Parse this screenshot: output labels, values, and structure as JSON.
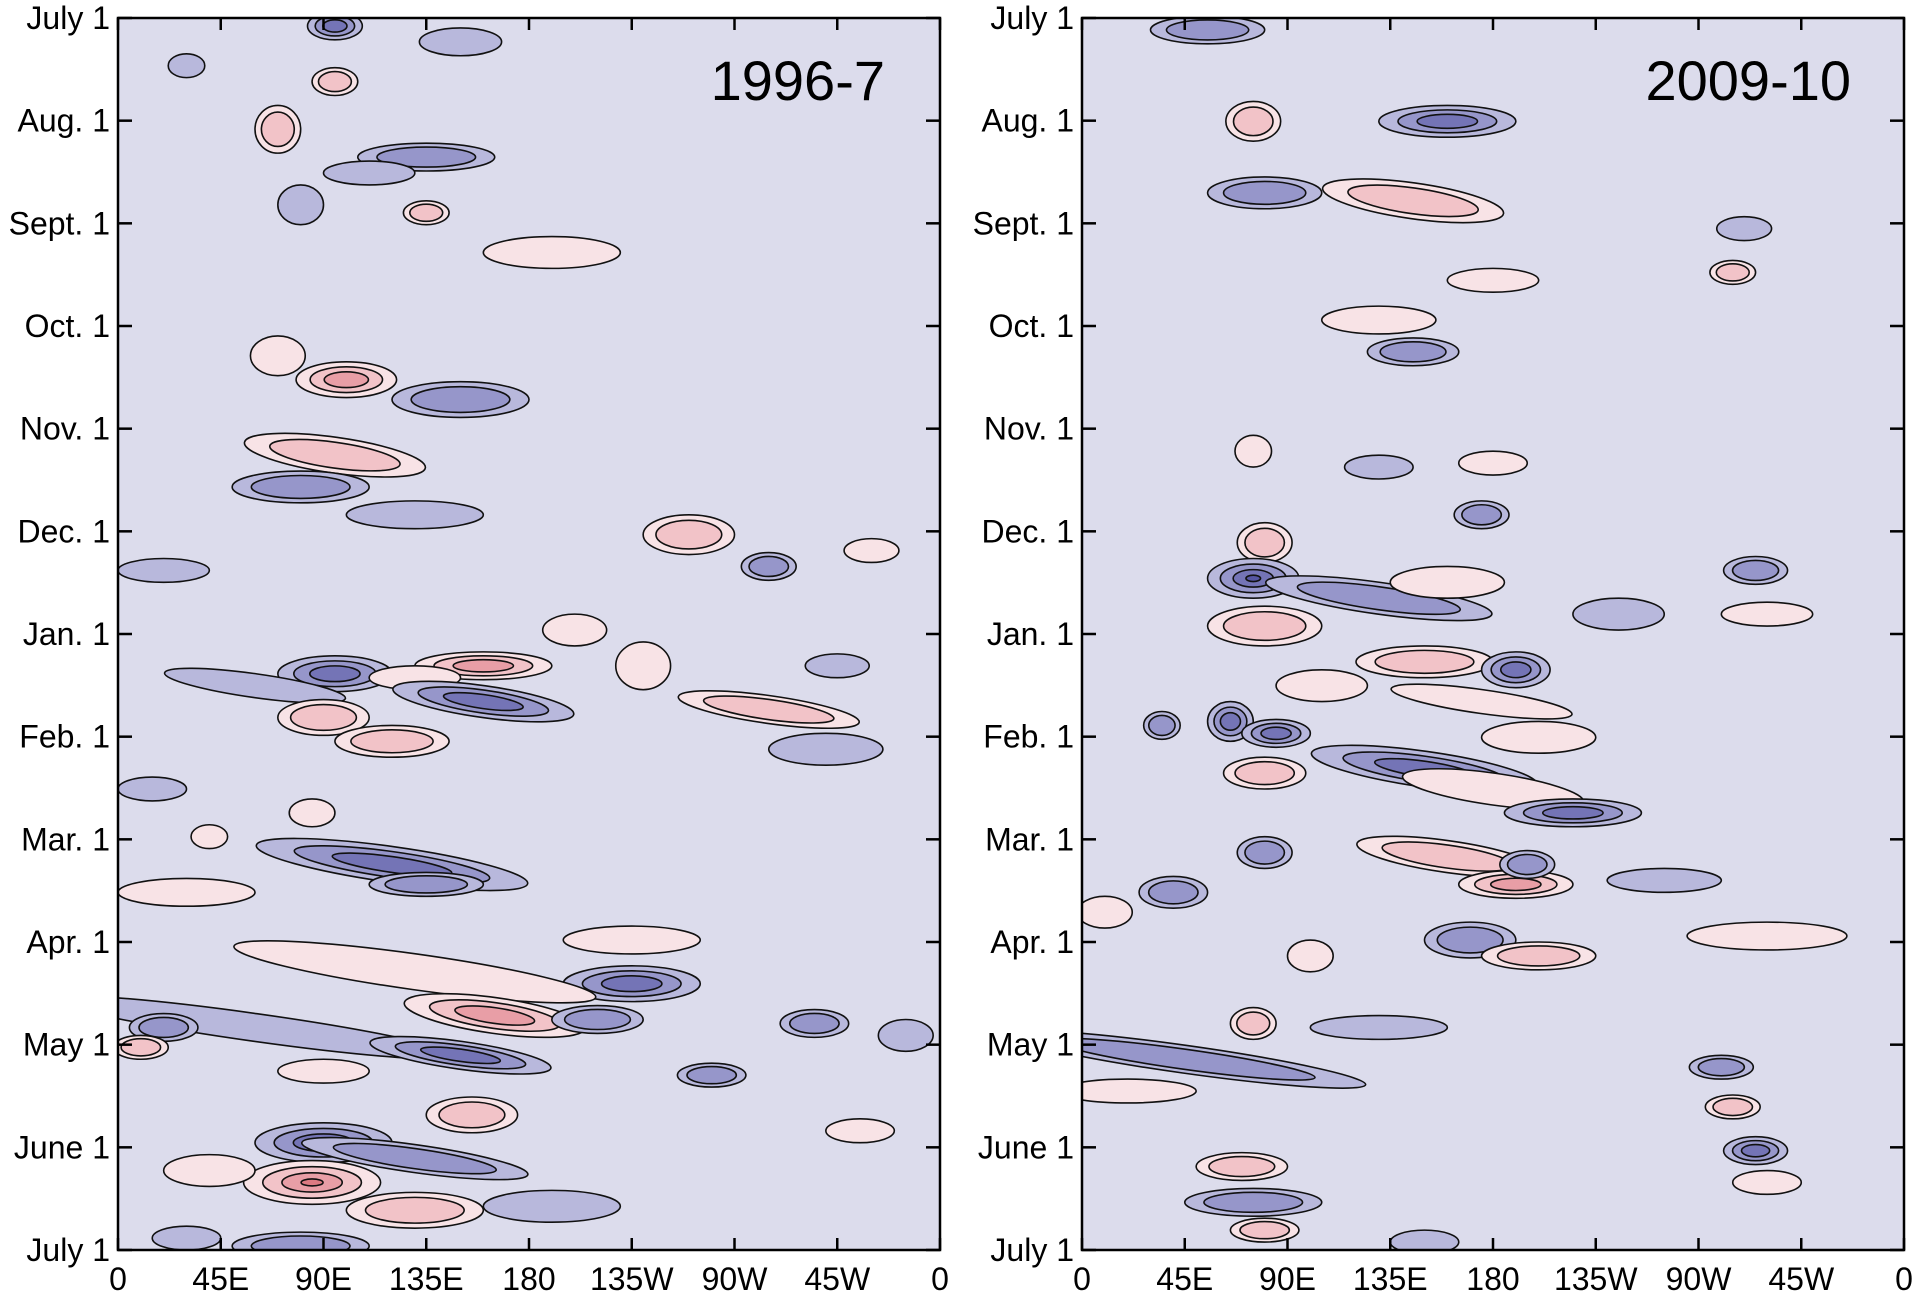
{
  "chart_data": [
    {
      "type": "heatmap",
      "title": "1996-7",
      "x_tick_labels": [
        "0",
        "45E",
        "90E",
        "135E",
        "180",
        "135W",
        "90W",
        "45W",
        "0"
      ],
      "y_tick_labels": [
        "July 1",
        "Aug. 1",
        "Sept. 1",
        "Oct. 1",
        "Nov. 1",
        "Dec. 1",
        "Jan. 1",
        "Feb. 1",
        "Mar. 1",
        "Apr. 1",
        "May 1",
        "June 1",
        "July 1"
      ],
      "colors": {
        "background": "#dcdcec",
        "positive": [
          "#f8e3e6",
          "#f2c3c8",
          "#e89ea6",
          "#dc7a82"
        ],
        "negative": [
          "#b8b8dc",
          "#9696ca",
          "#7474b6",
          "#5656a2"
        ]
      },
      "anomalies": [
        {
          "lon": 95,
          "t": 0.2,
          "w": 12,
          "h": 0.35,
          "sign": -1,
          "levels": 3
        },
        {
          "lon": 95,
          "t": 1.6,
          "w": 10,
          "h": 0.35,
          "sign": 1,
          "levels": 2
        },
        {
          "lon": 30,
          "t": 1.2,
          "w": 8,
          "h": 0.3,
          "sign": -1,
          "levels": 1
        },
        {
          "lon": 150,
          "t": 0.6,
          "w": 18,
          "h": 0.35,
          "sign": -1,
          "levels": 1
        },
        {
          "lon": 70,
          "t": 2.8,
          "w": 10,
          "h": 0.6,
          "sign": 1,
          "levels": 2
        },
        {
          "lon": 135,
          "t": 3.5,
          "w": 30,
          "h": 0.35,
          "sign": -1,
          "levels": 2
        },
        {
          "lon": 110,
          "t": 3.9,
          "w": 20,
          "h": 0.3,
          "sign": -1,
          "levels": 1
        },
        {
          "lon": 80,
          "t": 4.7,
          "w": 10,
          "h": 0.5,
          "sign": -1,
          "levels": 1
        },
        {
          "lon": 135,
          "t": 4.9,
          "w": 10,
          "h": 0.3,
          "sign": 1,
          "levels": 2
        },
        {
          "lon": 190,
          "t": 5.9,
          "w": 30,
          "h": 0.4,
          "sign": 1,
          "levels": 1
        },
        {
          "lon": 70,
          "t": 8.5,
          "w": 12,
          "h": 0.5,
          "sign": 1,
          "levels": 1
        },
        {
          "lon": 100,
          "t": 9.1,
          "w": 22,
          "h": 0.45,
          "sign": 1,
          "levels": 3
        },
        {
          "lon": 150,
          "t": 9.6,
          "w": 30,
          "h": 0.45,
          "sign": -1,
          "levels": 2
        },
        {
          "lon": 95,
          "t": 11.0,
          "w": 40,
          "h": 0.45,
          "sign": 1,
          "levels": 2
        },
        {
          "lon": 80,
          "t": 11.8,
          "w": 30,
          "h": 0.4,
          "sign": -1,
          "levels": 2
        },
        {
          "lon": 130,
          "t": 12.5,
          "w": 30,
          "h": 0.35,
          "sign": -1,
          "levels": 1
        },
        {
          "lon": 250,
          "t": 13.0,
          "w": 20,
          "h": 0.5,
          "sign": 1,
          "levels": 2
        },
        {
          "lon": 285,
          "t": 13.8,
          "w": 12,
          "h": 0.35,
          "sign": -1,
          "levels": 2
        },
        {
          "lon": 330,
          "t": 13.4,
          "w": 12,
          "h": 0.3,
          "sign": 1,
          "levels": 1
        },
        {
          "lon": 20,
          "t": 13.9,
          "w": 20,
          "h": 0.3,
          "sign": -1,
          "levels": 1
        },
        {
          "lon": 200,
          "t": 15.4,
          "w": 14,
          "h": 0.4,
          "sign": 1,
          "levels": 1
        },
        {
          "lon": 230,
          "t": 16.3,
          "w": 12,
          "h": 0.6,
          "sign": 1,
          "levels": 1
        },
        {
          "lon": 315,
          "t": 16.3,
          "w": 14,
          "h": 0.3,
          "sign": -1,
          "levels": 1
        },
        {
          "lon": 95,
          "t": 16.5,
          "w": 25,
          "h": 0.45,
          "sign": -1,
          "levels": 3
        },
        {
          "lon": 160,
          "t": 16.3,
          "w": 30,
          "h": 0.35,
          "sign": 1,
          "levels": 3
        },
        {
          "lon": 130,
          "t": 16.6,
          "w": 20,
          "h": 0.3,
          "sign": 1,
          "levels": 1
        },
        {
          "lon": 160,
          "t": 17.2,
          "w": 40,
          "h": 0.4,
          "sign": -1,
          "levels": 3
        },
        {
          "lon": 60,
          "t": 16.8,
          "w": 40,
          "h": 0.3,
          "sign": -1,
          "levels": 1
        },
        {
          "lon": 90,
          "t": 17.6,
          "w": 20,
          "h": 0.45,
          "sign": 1,
          "levels": 2
        },
        {
          "lon": 120,
          "t": 18.2,
          "w": 25,
          "h": 0.4,
          "sign": 1,
          "levels": 2
        },
        {
          "lon": 285,
          "t": 17.4,
          "w": 40,
          "h": 0.35,
          "sign": 1,
          "levels": 2
        },
        {
          "lon": 310,
          "t": 18.4,
          "w": 25,
          "h": 0.4,
          "sign": -1,
          "levels": 1
        },
        {
          "lon": 15,
          "t": 19.4,
          "w": 15,
          "h": 0.3,
          "sign": -1,
          "levels": 1
        },
        {
          "lon": 40,
          "t": 20.6,
          "w": 8,
          "h": 0.3,
          "sign": 1,
          "levels": 1
        },
        {
          "lon": 85,
          "t": 20.0,
          "w": 10,
          "h": 0.35,
          "sign": 1,
          "levels": 1
        },
        {
          "lon": 120,
          "t": 21.3,
          "w": 60,
          "h": 0.45,
          "sign": -1,
          "levels": 3
        },
        {
          "lon": 135,
          "t": 21.8,
          "w": 25,
          "h": 0.3,
          "sign": -1,
          "levels": 2
        },
        {
          "lon": 30,
          "t": 22.0,
          "w": 30,
          "h": 0.35,
          "sign": 1,
          "levels": 1
        },
        {
          "lon": 225,
          "t": 23.2,
          "w": 30,
          "h": 0.35,
          "sign": 1,
          "levels": 1
        },
        {
          "lon": 225,
          "t": 24.3,
          "w": 30,
          "h": 0.45,
          "sign": -1,
          "levels": 3
        },
        {
          "lon": 130,
          "t": 24.0,
          "w": 80,
          "h": 0.45,
          "sign": 1,
          "levels": 1
        },
        {
          "lon": 165,
          "t": 25.1,
          "w": 40,
          "h": 0.45,
          "sign": 1,
          "levels": 3
        },
        {
          "lon": 60,
          "t": 25.4,
          "w": 90,
          "h": 0.35,
          "sign": -1,
          "levels": 1
        },
        {
          "lon": 20,
          "t": 25.4,
          "w": 15,
          "h": 0.35,
          "sign": -1,
          "levels": 2
        },
        {
          "lon": 150,
          "t": 26.1,
          "w": 40,
          "h": 0.35,
          "sign": -1,
          "levels": 3
        },
        {
          "lon": 10,
          "t": 25.9,
          "w": 12,
          "h": 0.3,
          "sign": 1,
          "levels": 2
        },
        {
          "lon": 305,
          "t": 25.3,
          "w": 15,
          "h": 0.35,
          "sign": -1,
          "levels": 2
        },
        {
          "lon": 345,
          "t": 25.6,
          "w": 12,
          "h": 0.4,
          "sign": -1,
          "levels": 1
        },
        {
          "lon": 210,
          "t": 25.2,
          "w": 20,
          "h": 0.35,
          "sign": -1,
          "levels": 2
        },
        {
          "lon": 90,
          "t": 26.5,
          "w": 20,
          "h": 0.3,
          "sign": 1,
          "levels": 1
        },
        {
          "lon": 155,
          "t": 27.6,
          "w": 20,
          "h": 0.45,
          "sign": 1,
          "levels": 2
        },
        {
          "lon": 260,
          "t": 26.6,
          "w": 15,
          "h": 0.3,
          "sign": -1,
          "levels": 2
        },
        {
          "lon": 90,
          "t": 28.3,
          "w": 30,
          "h": 0.5,
          "sign": -1,
          "levels": 4
        },
        {
          "lon": 130,
          "t": 28.7,
          "w": 50,
          "h": 0.35,
          "sign": -1,
          "levels": 2
        },
        {
          "lon": 85,
          "t": 29.3,
          "w": 30,
          "h": 0.55,
          "sign": 1,
          "levels": 4
        },
        {
          "lon": 40,
          "t": 29.0,
          "w": 20,
          "h": 0.4,
          "sign": 1,
          "levels": 1
        },
        {
          "lon": 130,
          "t": 30.0,
          "w": 30,
          "h": 0.45,
          "sign": 1,
          "levels": 2
        },
        {
          "lon": 190,
          "t": 29.9,
          "w": 30,
          "h": 0.4,
          "sign": -1,
          "levels": 1
        },
        {
          "lon": 325,
          "t": 28.0,
          "w": 15,
          "h": 0.3,
          "sign": 1,
          "levels": 1
        },
        {
          "lon": 80,
          "t": 30.9,
          "w": 30,
          "h": 0.35,
          "sign": -1,
          "levels": 2
        },
        {
          "lon": 30,
          "t": 30.7,
          "w": 15,
          "h": 0.3,
          "sign": -1,
          "levels": 1
        }
      ]
    },
    {
      "type": "heatmap",
      "title": "2009-10",
      "x_tick_labels": [
        "0",
        "45E",
        "90E",
        "135E",
        "180",
        "135W",
        "90W",
        "45W",
        "0"
      ],
      "y_tick_labels": [
        "July 1",
        "Aug. 1",
        "Sept. 1",
        "Oct. 1",
        "Nov. 1",
        "Dec. 1",
        "Jan. 1",
        "Feb. 1",
        "Mar. 1",
        "Apr. 1",
        "May 1",
        "June 1",
        "July 1"
      ],
      "colors": {
        "background": "#dcdcec",
        "positive": [
          "#f8e3e6",
          "#f2c3c8",
          "#e89ea6",
          "#dc7a82"
        ],
        "negative": [
          "#b8b8dc",
          "#9696ca",
          "#7474b6",
          "#5656a2"
        ]
      },
      "anomalies": [
        {
          "lon": 55,
          "t": 0.3,
          "w": 25,
          "h": 0.35,
          "sign": -1,
          "levels": 2
        },
        {
          "lon": 75,
          "t": 2.6,
          "w": 12,
          "h": 0.5,
          "sign": 1,
          "levels": 2
        },
        {
          "lon": 160,
          "t": 2.6,
          "w": 30,
          "h": 0.4,
          "sign": -1,
          "levels": 3
        },
        {
          "lon": 80,
          "t": 4.4,
          "w": 25,
          "h": 0.4,
          "sign": -1,
          "levels": 2
        },
        {
          "lon": 145,
          "t": 4.6,
          "w": 40,
          "h": 0.45,
          "sign": 1,
          "levels": 2
        },
        {
          "lon": 180,
          "t": 6.6,
          "w": 20,
          "h": 0.3,
          "sign": 1,
          "levels": 1
        },
        {
          "lon": 130,
          "t": 7.6,
          "w": 25,
          "h": 0.35,
          "sign": 1,
          "levels": 1
        },
        {
          "lon": 145,
          "t": 8.4,
          "w": 20,
          "h": 0.35,
          "sign": -1,
          "levels": 2
        },
        {
          "lon": 290,
          "t": 5.3,
          "w": 12,
          "h": 0.3,
          "sign": -1,
          "levels": 1
        },
        {
          "lon": 285,
          "t": 6.4,
          "w": 10,
          "h": 0.3,
          "sign": 1,
          "levels": 2
        },
        {
          "lon": 75,
          "t": 10.9,
          "w": 8,
          "h": 0.4,
          "sign": 1,
          "levels": 1
        },
        {
          "lon": 130,
          "t": 11.3,
          "w": 15,
          "h": 0.3,
          "sign": -1,
          "levels": 1
        },
        {
          "lon": 180,
          "t": 11.2,
          "w": 15,
          "h": 0.3,
          "sign": 1,
          "levels": 1
        },
        {
          "lon": 175,
          "t": 12.5,
          "w": 12,
          "h": 0.35,
          "sign": -1,
          "levels": 2
        },
        {
          "lon": 80,
          "t": 13.2,
          "w": 12,
          "h": 0.5,
          "sign": 1,
          "levels": 2
        },
        {
          "lon": 75,
          "t": 14.1,
          "w": 20,
          "h": 0.5,
          "sign": -1,
          "levels": 4
        },
        {
          "lon": 130,
          "t": 14.6,
          "w": 50,
          "h": 0.4,
          "sign": -1,
          "levels": 2
        },
        {
          "lon": 80,
          "t": 15.3,
          "w": 25,
          "h": 0.5,
          "sign": 1,
          "levels": 2
        },
        {
          "lon": 160,
          "t": 14.2,
          "w": 25,
          "h": 0.4,
          "sign": 1,
          "levels": 1
        },
        {
          "lon": 295,
          "t": 13.9,
          "w": 14,
          "h": 0.35,
          "sign": -1,
          "levels": 2
        },
        {
          "lon": 235,
          "t": 15.0,
          "w": 20,
          "h": 0.4,
          "sign": -1,
          "levels": 1
        },
        {
          "lon": 300,
          "t": 15.0,
          "w": 20,
          "h": 0.3,
          "sign": 1,
          "levels": 1
        },
        {
          "lon": 150,
          "t": 16.2,
          "w": 30,
          "h": 0.4,
          "sign": 1,
          "levels": 2
        },
        {
          "lon": 190,
          "t": 16.4,
          "w": 15,
          "h": 0.45,
          "sign": -1,
          "levels": 3
        },
        {
          "lon": 105,
          "t": 16.8,
          "w": 20,
          "h": 0.4,
          "sign": 1,
          "levels": 1
        },
        {
          "lon": 175,
          "t": 17.2,
          "w": 40,
          "h": 0.3,
          "sign": 1,
          "levels": 1
        },
        {
          "lon": 65,
          "t": 17.7,
          "w": 10,
          "h": 0.5,
          "sign": -1,
          "levels": 3
        },
        {
          "lon": 85,
          "t": 18.0,
          "w": 15,
          "h": 0.35,
          "sign": -1,
          "levels": 3
        },
        {
          "lon": 35,
          "t": 17.8,
          "w": 8,
          "h": 0.35,
          "sign": -1,
          "levels": 2
        },
        {
          "lon": 200,
          "t": 18.1,
          "w": 25,
          "h": 0.4,
          "sign": 1,
          "levels": 1
        },
        {
          "lon": 150,
          "t": 18.9,
          "w": 50,
          "h": 0.45,
          "sign": -1,
          "levels": 3
        },
        {
          "lon": 180,
          "t": 19.4,
          "w": 40,
          "h": 0.4,
          "sign": 1,
          "levels": 1
        },
        {
          "lon": 80,
          "t": 19.0,
          "w": 18,
          "h": 0.4,
          "sign": 1,
          "levels": 2
        },
        {
          "lon": 215,
          "t": 20.0,
          "w": 30,
          "h": 0.35,
          "sign": -1,
          "levels": 3
        },
        {
          "lon": 160,
          "t": 21.1,
          "w": 40,
          "h": 0.4,
          "sign": 1,
          "levels": 2
        },
        {
          "lon": 190,
          "t": 21.8,
          "w": 25,
          "h": 0.35,
          "sign": 1,
          "levels": 3
        },
        {
          "lon": 195,
          "t": 21.3,
          "w": 12,
          "h": 0.35,
          "sign": -1,
          "levels": 2
        },
        {
          "lon": 80,
          "t": 21.0,
          "w": 12,
          "h": 0.4,
          "sign": -1,
          "levels": 2
        },
        {
          "lon": 40,
          "t": 22.0,
          "w": 15,
          "h": 0.4,
          "sign": -1,
          "levels": 2
        },
        {
          "lon": 10,
          "t": 22.5,
          "w": 12,
          "h": 0.4,
          "sign": 1,
          "levels": 1
        },
        {
          "lon": 255,
          "t": 21.7,
          "w": 25,
          "h": 0.3,
          "sign": -1,
          "levels": 1
        },
        {
          "lon": 300,
          "t": 23.1,
          "w": 35,
          "h": 0.35,
          "sign": 1,
          "levels": 1
        },
        {
          "lon": 170,
          "t": 23.2,
          "w": 20,
          "h": 0.45,
          "sign": -1,
          "levels": 2
        },
        {
          "lon": 200,
          "t": 23.6,
          "w": 25,
          "h": 0.35,
          "sign": 1,
          "levels": 2
        },
        {
          "lon": 100,
          "t": 23.6,
          "w": 10,
          "h": 0.4,
          "sign": 1,
          "levels": 1
        },
        {
          "lon": 75,
          "t": 25.3,
          "w": 10,
          "h": 0.4,
          "sign": 1,
          "levels": 2
        },
        {
          "lon": 130,
          "t": 25.4,
          "w": 30,
          "h": 0.3,
          "sign": -1,
          "levels": 1
        },
        {
          "lon": 45,
          "t": 26.2,
          "w": 80,
          "h": 0.35,
          "sign": -1,
          "levels": 2
        },
        {
          "lon": 20,
          "t": 27.0,
          "w": 30,
          "h": 0.3,
          "sign": 1,
          "levels": 1
        },
        {
          "lon": 280,
          "t": 26.4,
          "w": 14,
          "h": 0.3,
          "sign": -1,
          "levels": 2
        },
        {
          "lon": 285,
          "t": 27.4,
          "w": 12,
          "h": 0.3,
          "sign": 1,
          "levels": 2
        },
        {
          "lon": 295,
          "t": 28.5,
          "w": 14,
          "h": 0.35,
          "sign": -1,
          "levels": 3
        },
        {
          "lon": 300,
          "t": 29.3,
          "w": 15,
          "h": 0.3,
          "sign": 1,
          "levels": 1
        },
        {
          "lon": 70,
          "t": 28.9,
          "w": 20,
          "h": 0.35,
          "sign": 1,
          "levels": 2
        },
        {
          "lon": 75,
          "t": 29.8,
          "w": 30,
          "h": 0.35,
          "sign": -1,
          "levels": 2
        },
        {
          "lon": 80,
          "t": 30.5,
          "w": 15,
          "h": 0.3,
          "sign": 1,
          "levels": 2
        },
        {
          "lon": 150,
          "t": 30.8,
          "w": 15,
          "h": 0.3,
          "sign": -1,
          "levels": 1
        }
      ]
    }
  ]
}
